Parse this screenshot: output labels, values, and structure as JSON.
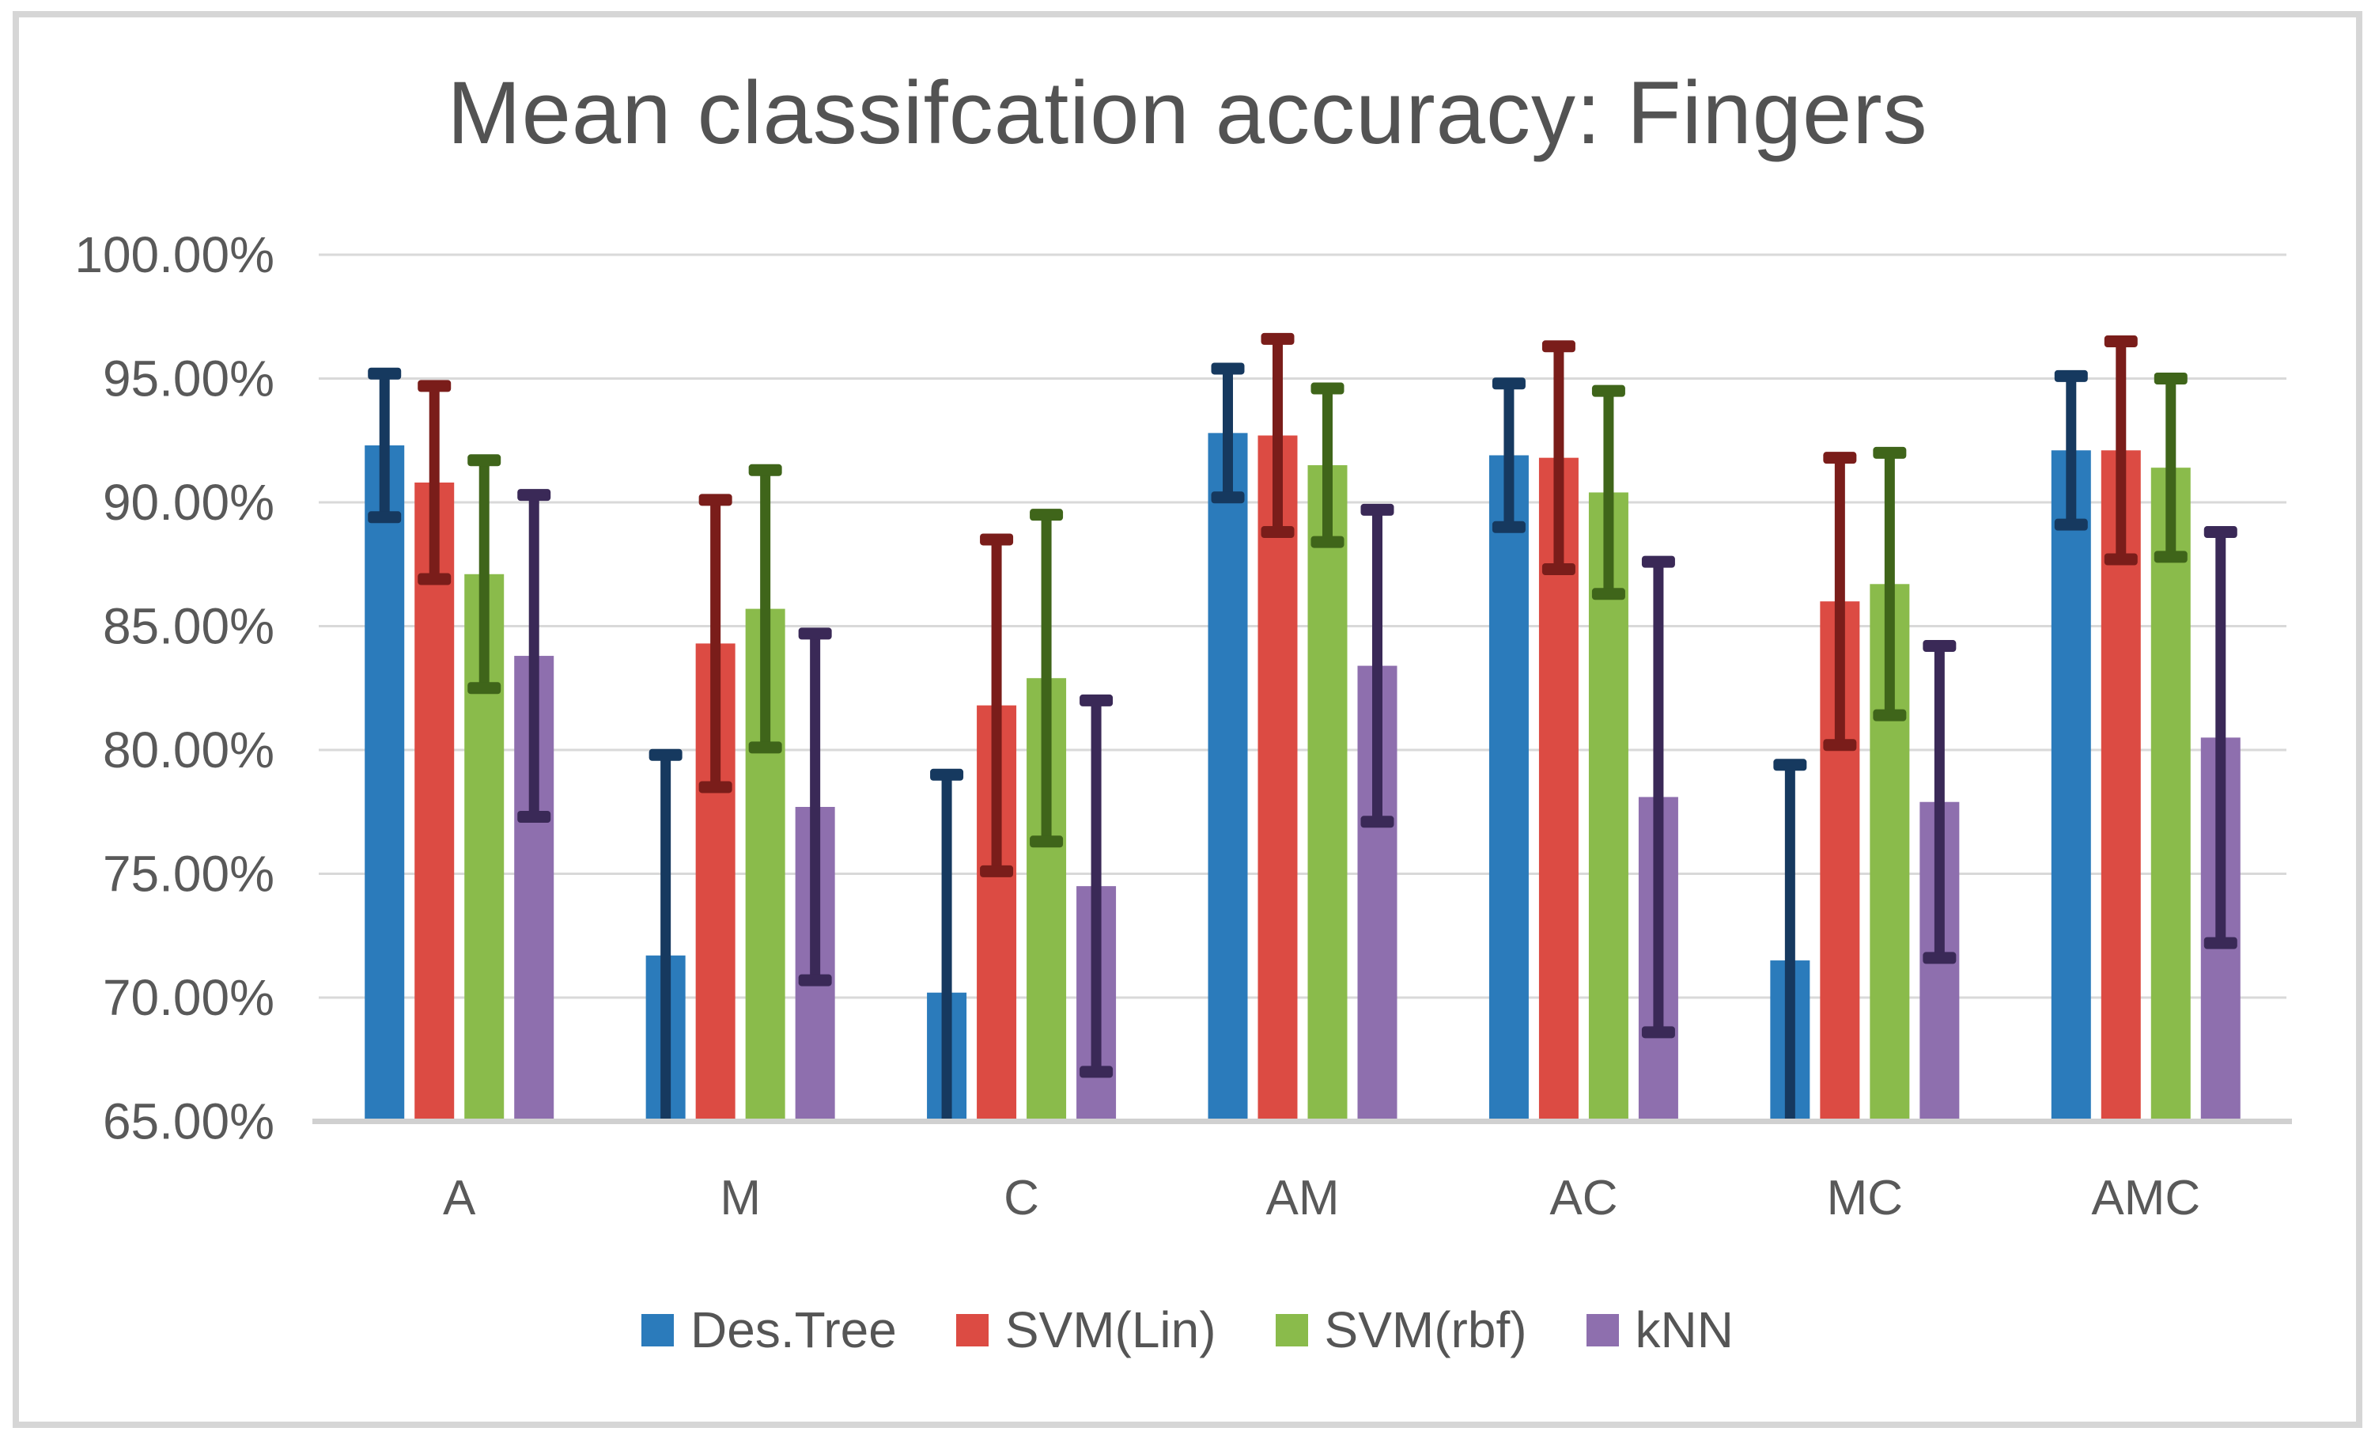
{
  "chart_data": {
    "type": "bar",
    "title": "Mean classifcation accuracy: Fingers",
    "categories": [
      "A",
      "M",
      "C",
      "AM",
      "AC",
      "MC",
      "AMC"
    ],
    "series": [
      {
        "name": "Des.Tree",
        "color": "#2B7BBB",
        "error_color": "#16395F",
        "values": [
          92.3,
          71.7,
          70.2,
          92.8,
          91.9,
          71.5,
          92.1
        ],
        "errors": [
          2.9,
          8.1,
          8.8,
          2.6,
          2.9,
          7.9,
          3.0
        ]
      },
      {
        "name": "SVM(Lin)",
        "color": "#DC4B43",
        "error_color": "#7A1D1A",
        "values": [
          90.8,
          84.3,
          81.8,
          92.7,
          91.8,
          86.0,
          92.1
        ],
        "errors": [
          3.9,
          5.8,
          6.7,
          3.9,
          4.5,
          5.8,
          4.4
        ]
      },
      {
        "name": "SVM(rbf)",
        "color": "#8ABB4B",
        "error_color": "#3F651A",
        "values": [
          87.1,
          85.7,
          82.9,
          91.5,
          90.4,
          86.7,
          91.4
        ],
        "errors": [
          4.6,
          5.6,
          6.6,
          3.1,
          4.1,
          5.3,
          3.6
        ]
      },
      {
        "name": "kNN",
        "color": "#8E6FAE",
        "error_color": "#3A2957",
        "values": [
          83.8,
          77.7,
          74.5,
          83.4,
          78.1,
          77.9,
          80.5
        ],
        "errors": [
          6.5,
          7.0,
          7.5,
          6.3,
          9.5,
          6.3,
          8.3
        ]
      }
    ],
    "ylim": [
      65,
      100
    ],
    "ytick_step": 5,
    "ytick_labels": [
      "100.00%",
      "95.00%",
      "90.00%",
      "85.00%",
      "80.00%",
      "75.00%",
      "70.00%",
      "65.00%"
    ],
    "grid": true,
    "legend_position": "bottom"
  },
  "styles": {
    "text_color": "#595959",
    "grid_color": "#D9D9D9",
    "axis_color": "#D0D0D0",
    "frame_border_color": "#D6D6D6",
    "background": "#FFFFFF"
  }
}
